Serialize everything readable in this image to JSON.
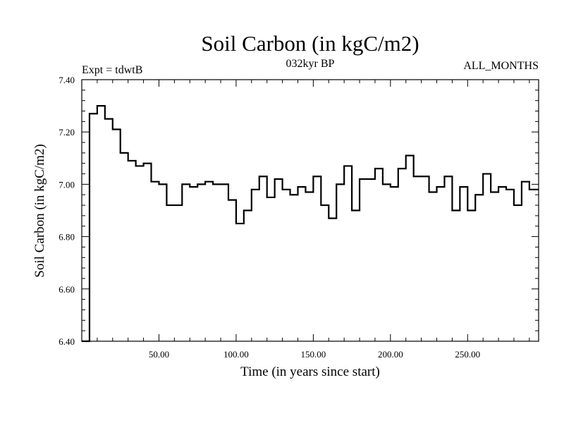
{
  "chart_data": {
    "type": "line",
    "step": true,
    "title": "Soil Carbon (in kgC/m2)",
    "subtitle": "032kyr BP",
    "experiment": "Expt = tdwtB",
    "months": "ALL_MONTHS",
    "xlabel": "Time (in years since start)",
    "ylabel": "Soil Carbon (in kgC/m2)",
    "xlim": [
      0,
      296
    ],
    "ylim": [
      6.4,
      7.4
    ],
    "xticks": [
      {
        "value": 50,
        "label": "50.00"
      },
      {
        "value": 100,
        "label": "100.00"
      },
      {
        "value": 150,
        "label": "150.00"
      },
      {
        "value": 200,
        "label": "200.00"
      },
      {
        "value": 250,
        "label": "250.00"
      }
    ],
    "yticks": [
      {
        "value": 6.4,
        "label": "6.40"
      },
      {
        "value": 6.6,
        "label": "6.60"
      },
      {
        "value": 6.8,
        "label": "6.80"
      },
      {
        "value": 7.0,
        "label": "7.00"
      },
      {
        "value": 7.2,
        "label": "7.20"
      },
      {
        "value": 7.4,
        "label": "7.40"
      }
    ],
    "grid": false,
    "series": [
      {
        "name": "Soil Carbon",
        "color": "#000000",
        "x": [
          0,
          5,
          10,
          15,
          20,
          25,
          30,
          35,
          40,
          45,
          50,
          55,
          60,
          65,
          70,
          75,
          80,
          85,
          90,
          95,
          100,
          105,
          110,
          115,
          120,
          125,
          130,
          135,
          140,
          145,
          150,
          155,
          160,
          165,
          170,
          175,
          180,
          185,
          190,
          195,
          200,
          205,
          210,
          215,
          220,
          225,
          230,
          235,
          240,
          245,
          250,
          255,
          260,
          265,
          270,
          275,
          280,
          285,
          290,
          295
        ],
        "values": [
          6.4,
          7.27,
          7.3,
          7.25,
          7.21,
          7.12,
          7.09,
          7.07,
          7.08,
          7.01,
          7.0,
          6.92,
          6.92,
          7.0,
          6.99,
          7.0,
          7.01,
          7.0,
          7.0,
          6.94,
          6.85,
          6.9,
          6.98,
          7.03,
          6.95,
          7.02,
          6.98,
          6.96,
          6.99,
          6.97,
          7.03,
          6.92,
          6.87,
          7.0,
          7.07,
          6.9,
          7.02,
          7.02,
          7.06,
          7.0,
          6.99,
          7.06,
          7.11,
          7.03,
          7.03,
          6.97,
          6.99,
          7.03,
          6.9,
          6.99,
          6.9,
          6.96,
          7.04,
          6.97,
          6.99,
          6.98,
          6.92,
          7.01,
          6.98,
          6.98
        ]
      }
    ]
  }
}
